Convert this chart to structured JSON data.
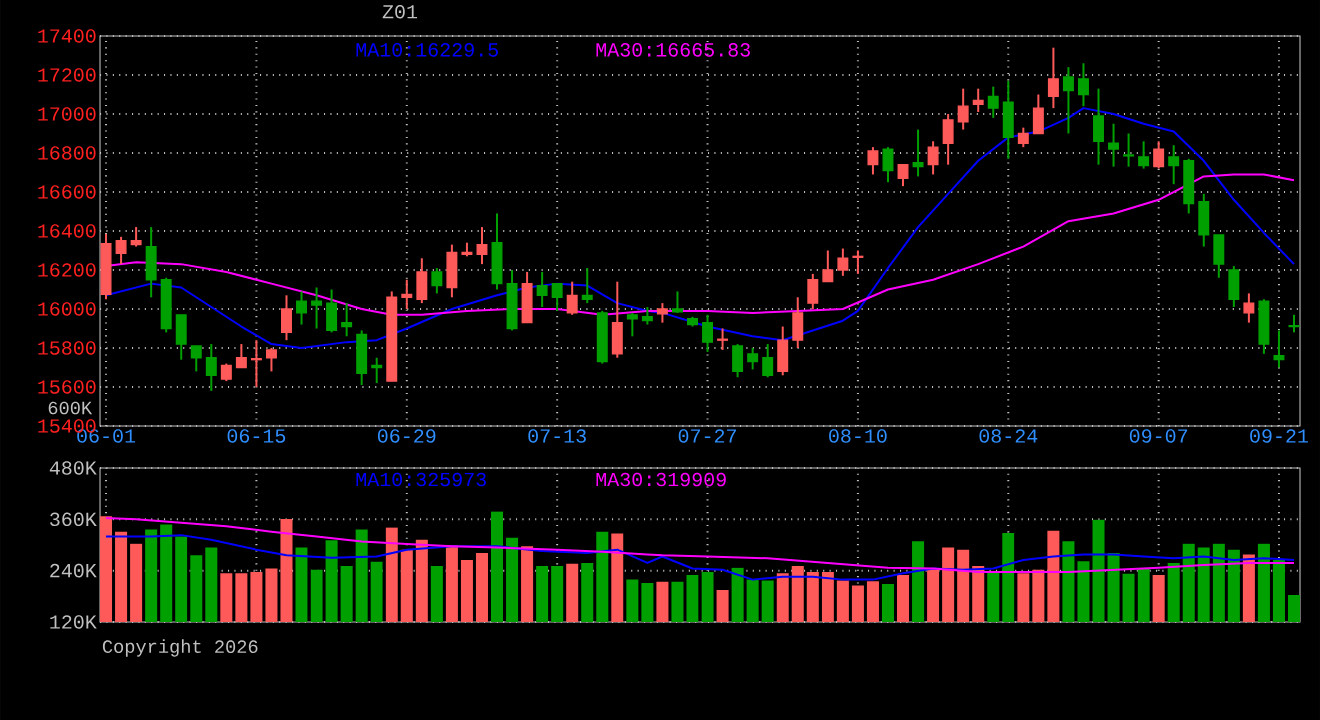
{
  "chart_data": [
    {
      "type": "candlestick",
      "title": "Z01",
      "categories": [
        "06-01",
        null,
        null,
        null,
        null,
        null,
        null,
        null,
        null,
        null,
        "06-15",
        null,
        null,
        null,
        null,
        null,
        null,
        null,
        null,
        null,
        "06-29",
        null,
        null,
        null,
        null,
        null,
        null,
        null,
        null,
        null,
        "07-13",
        null,
        null,
        null,
        null,
        null,
        null,
        null,
        null,
        null,
        "07-27",
        null,
        null,
        null,
        null,
        null,
        null,
        null,
        null,
        null,
        "08-10",
        null,
        null,
        null,
        null,
        null,
        null,
        null,
        null,
        null,
        "08-24",
        null,
        null,
        null,
        null,
        null,
        null,
        null,
        null,
        null,
        "09-07",
        null,
        null,
        null,
        null,
        null,
        null,
        null,
        "09-21",
        null
      ],
      "ohlc": [
        [
          16075,
          16385,
          16050,
          16335
        ],
        [
          16285,
          16370,
          16230,
          16350
        ],
        [
          16330,
          16420,
          16320,
          16350
        ],
        [
          16320,
          16420,
          16060,
          16150
        ],
        [
          16150,
          16160,
          15880,
          15900
        ],
        [
          15970,
          15970,
          15740,
          15820
        ],
        [
          15810,
          15810,
          15680,
          15750
        ],
        [
          15750,
          15820,
          15580,
          15660
        ],
        [
          15640,
          15720,
          15630,
          15710
        ],
        [
          15700,
          15820,
          15700,
          15750
        ],
        [
          15740,
          15840,
          15600,
          15745
        ],
        [
          15750,
          15800,
          15680,
          15790
        ],
        [
          15880,
          16070,
          15840,
          16000
        ],
        [
          16040,
          16090,
          15920,
          15980
        ],
        [
          16040,
          16110,
          15900,
          16020
        ],
        [
          16030,
          16100,
          15880,
          15890
        ],
        [
          15930,
          16030,
          15860,
          15910
        ],
        [
          15870,
          15890,
          15610,
          15670
        ],
        [
          15710,
          15750,
          15620,
          15700
        ],
        [
          15630,
          16090,
          15630,
          16060
        ],
        [
          16060,
          16150,
          16000,
          16075
        ],
        [
          16050,
          16260,
          16030,
          16190
        ],
        [
          16190,
          16210,
          16080,
          16120
        ],
        [
          16110,
          16330,
          16060,
          16290
        ],
        [
          16280,
          16340,
          16270,
          16290
        ],
        [
          16280,
          16420,
          16230,
          16330
        ],
        [
          16340,
          16490,
          16100,
          16130
        ],
        [
          16130,
          16200,
          15890,
          15900
        ],
        [
          15930,
          16190,
          15930,
          16130
        ],
        [
          16120,
          16190,
          16010,
          16070
        ],
        [
          16130,
          16130,
          15990,
          16060
        ],
        [
          15980,
          16140,
          15970,
          16070
        ],
        [
          16070,
          16210,
          16030,
          16050
        ],
        [
          15980,
          15990,
          15720,
          15730
        ],
        [
          15770,
          16140,
          15750,
          15930
        ],
        [
          15970,
          15980,
          15860,
          15950
        ],
        [
          15960,
          16010,
          15920,
          15940
        ],
        [
          15975,
          16030,
          15930,
          16000
        ],
        [
          16000,
          16090,
          15980,
          15985
        ],
        [
          15950,
          15960,
          15910,
          15920
        ],
        [
          15930,
          15970,
          15780,
          15830
        ],
        [
          15840,
          15900,
          15790,
          15845
        ],
        [
          15810,
          15820,
          15650,
          15680
        ],
        [
          15770,
          15800,
          15690,
          15730
        ],
        [
          15750,
          15820,
          15650,
          15660
        ],
        [
          15680,
          15910,
          15660,
          15840
        ],
        [
          15840,
          16060,
          15800,
          15980
        ],
        [
          16030,
          16180,
          16000,
          16150
        ],
        [
          16140,
          16300,
          16140,
          16200
        ],
        [
          16200,
          16310,
          16170,
          16260
        ],
        [
          16265,
          16300,
          16180,
          16270
        ],
        [
          16740,
          16830,
          16690,
          16810
        ],
        [
          16820,
          16830,
          16650,
          16710
        ],
        [
          16670,
          16740,
          16630,
          16740
        ],
        [
          16750,
          16920,
          16680,
          16730
        ],
        [
          16740,
          16860,
          16690,
          16830
        ],
        [
          16850,
          17000,
          16740,
          16970
        ],
        [
          16960,
          17130,
          16920,
          17040
        ],
        [
          17050,
          17130,
          17010,
          17070
        ],
        [
          17090,
          17140,
          16980,
          17030
        ],
        [
          17060,
          17170,
          16770,
          16880
        ],
        [
          16850,
          16930,
          16830,
          16900
        ],
        [
          16900,
          17100,
          16900,
          17030
        ],
        [
          17090,
          17340,
          17030,
          17180
        ],
        [
          17190,
          17240,
          16900,
          17120
        ],
        [
          17180,
          17260,
          17040,
          17100
        ],
        [
          16990,
          17130,
          16740,
          16860
        ],
        [
          16850,
          16950,
          16730,
          16820
        ],
        [
          16790,
          16900,
          16730,
          16785
        ],
        [
          16780,
          16860,
          16720,
          16735
        ],
        [
          16730,
          16860,
          16720,
          16820
        ],
        [
          16780,
          16840,
          16640,
          16735
        ],
        [
          16760,
          16770,
          16490,
          16540
        ],
        [
          16550,
          16590,
          16320,
          16380
        ],
        [
          16380,
          16380,
          16160,
          16230
        ],
        [
          16200,
          16220,
          16010,
          16050
        ],
        [
          15980,
          16080,
          15930,
          16030
        ],
        [
          16040,
          16050,
          15770,
          15820
        ],
        [
          15760,
          15890,
          15700,
          15740
        ],
        [
          15915,
          15970,
          15880,
          15910
        ]
      ],
      "colors": [
        "#ff5a5a",
        "#ff5a5a",
        "#ff5a5a",
        "#00a000",
        "#00a000",
        "#00a000",
        "#00a000",
        "#00a000",
        "#ff5a5a",
        "#ff5a5a",
        "#ff5a5a",
        "#ff5a5a",
        "#ff5a5a",
        "#00a000",
        "#00a000",
        "#00a000",
        "#00a000",
        "#00a000",
        "#00a000",
        "#ff5a5a",
        "#ff5a5a",
        "#ff5a5a",
        "#00a000",
        "#ff5a5a",
        "#ff5a5a",
        "#ff5a5a",
        "#00a000",
        "#00a000",
        "#ff5a5a",
        "#00a000",
        "#00a000",
        "#ff5a5a",
        "#00a000",
        "#00a000",
        "#ff5a5a",
        "#00a000",
        "#00a000",
        "#ff5a5a",
        "#00a000",
        "#00a000",
        "#00a000",
        "#ff5a5a",
        "#00a000",
        "#00a000",
        "#00a000",
        "#ff5a5a",
        "#ff5a5a",
        "#ff5a5a",
        "#ff5a5a",
        "#ff5a5a",
        "#ff5a5a",
        "#ff5a5a",
        "#00a000",
        "#ff5a5a",
        "#00a000",
        "#ff5a5a",
        "#ff5a5a",
        "#ff5a5a",
        "#ff5a5a",
        "#00a000",
        "#00a000",
        "#ff5a5a",
        "#ff5a5a",
        "#ff5a5a",
        "#00a000",
        "#00a000",
        "#00a000",
        "#00a000",
        "#00a000",
        "#00a000",
        "#ff5a5a",
        "#00a000",
        "#00a000",
        "#00a000",
        "#00a000",
        "#00a000",
        "#ff5a5a",
        "#00a000",
        "#00a000",
        "#00a000"
      ],
      "series": [
        {
          "name": "MA10:16229.5",
          "type": "line",
          "color": "#0000ff",
          "values": [
            16070,
            null,
            null,
            16130,
            null,
            16110,
            null,
            16010,
            null,
            15910,
            null,
            15820,
            null,
            15800,
            null,
            null,
            15830,
            null,
            15840,
            null,
            15900,
            null,
            null,
            16000,
            null,
            null,
            16070,
            null,
            16110,
            null,
            16130,
            null,
            16120,
            null,
            16030,
            null,
            15990,
            15980,
            null,
            null,
            15910,
            null,
            null,
            15860,
            null,
            15840,
            null,
            15890,
            null,
            15940,
            15990,
            null,
            16210,
            null,
            16420,
            null,
            16590,
            null,
            16760,
            null,
            16880,
            null,
            16910,
            null,
            16980,
            17030,
            null,
            17000,
            null,
            16950,
            null,
            16910,
            null,
            16760,
            null,
            16560,
            null,
            16390,
            null,
            16230
          ]
        },
        {
          "name": "MA30:16665.83",
          "type": "line",
          "color": "#ff00ff",
          "values": [
            16220,
            null,
            16240,
            null,
            null,
            16230,
            null,
            null,
            16190,
            null,
            null,
            16130,
            null,
            null,
            16070,
            null,
            null,
            16000,
            null,
            15970,
            null,
            15970,
            null,
            null,
            15990,
            null,
            null,
            16000,
            null,
            null,
            16000,
            null,
            null,
            15970,
            null,
            null,
            15990,
            null,
            null,
            null,
            15990,
            null,
            null,
            15980,
            null,
            null,
            15990,
            null,
            null,
            16000,
            null,
            null,
            16100,
            null,
            null,
            16150,
            null,
            null,
            16230,
            null,
            null,
            16320,
            null,
            null,
            16450,
            null,
            null,
            16490,
            null,
            null,
            16560,
            null,
            null,
            16680,
            null,
            16690,
            null,
            16690,
            null,
            16660
          ]
        }
      ],
      "ylim": [
        15400,
        17400
      ],
      "yticks": [
        15400,
        15600,
        15800,
        16000,
        16200,
        16400,
        16600,
        16800,
        17000,
        17200,
        17400
      ],
      "grid": true,
      "legend": "top",
      "annotations": [
        "600K"
      ]
    },
    {
      "type": "bar",
      "categories": [
        null,
        null,
        null,
        null,
        null,
        null,
        null,
        null,
        null,
        null,
        null,
        null,
        null,
        null,
        null,
        null,
        null,
        null,
        null,
        null,
        null,
        null,
        null,
        null,
        null,
        null,
        null,
        null,
        null,
        null,
        null,
        null,
        null,
        null,
        null,
        null,
        null,
        null,
        null,
        null,
        null,
        null,
        null,
        null,
        null,
        null,
        null,
        null,
        null,
        null,
        null,
        null,
        null,
        null,
        null,
        null,
        null,
        null,
        null,
        null,
        null,
        null,
        null,
        null,
        null,
        null,
        null,
        null,
        null,
        null,
        null,
        null,
        null,
        null,
        null,
        null,
        null,
        null,
        null,
        null
      ],
      "series": [
        {
          "type": "bar",
          "values": [
            367000,
            331000,
            303000,
            336000,
            348000,
            320000,
            276000,
            294000,
            234000,
            234000,
            237000,
            245000,
            361000,
            294000,
            242000,
            311000,
            251000,
            336000,
            261000,
            341000,
            289000,
            312000,
            251000,
            300000,
            265000,
            281000,
            378000,
            317000,
            297000,
            251000,
            251000,
            256000,
            258000,
            331000,
            327000,
            219000,
            211000,
            214000,
            214000,
            230000,
            237000,
            195000,
            247000,
            219000,
            217000,
            234000,
            251000,
            237000,
            237000,
            217000,
            205000,
            215000,
            209000,
            230000,
            309000,
            245000,
            294000,
            289000,
            251000,
            237000,
            328000,
            234000,
            242000,
            333000,
            309000,
            262000,
            359000,
            281000,
            233000,
            245000,
            230000,
            258000,
            303000,
            294000,
            303000,
            289000,
            278000,
            303000,
            265000,
            183000
          ],
          "colors": [
            "#ff5a5a",
            "#ff5a5a",
            "#ff5a5a",
            "#00a000",
            "#00a000",
            "#00a000",
            "#00a000",
            "#00a000",
            "#ff5a5a",
            "#ff5a5a",
            "#ff5a5a",
            "#ff5a5a",
            "#ff5a5a",
            "#00a000",
            "#00a000",
            "#00a000",
            "#00a000",
            "#00a000",
            "#00a000",
            "#ff5a5a",
            "#ff5a5a",
            "#ff5a5a",
            "#00a000",
            "#ff5a5a",
            "#ff5a5a",
            "#ff5a5a",
            "#00a000",
            "#00a000",
            "#ff5a5a",
            "#00a000",
            "#00a000",
            "#ff5a5a",
            "#00a000",
            "#00a000",
            "#ff5a5a",
            "#00a000",
            "#00a000",
            "#ff5a5a",
            "#00a000",
            "#00a000",
            "#00a000",
            "#ff5a5a",
            "#00a000",
            "#00a000",
            "#00a000",
            "#ff5a5a",
            "#ff5a5a",
            "#ff5a5a",
            "#ff5a5a",
            "#ff5a5a",
            "#ff5a5a",
            "#ff5a5a",
            "#00a000",
            "#ff5a5a",
            "#00a000",
            "#ff5a5a",
            "#ff5a5a",
            "#ff5a5a",
            "#ff5a5a",
            "#00a000",
            "#00a000",
            "#ff5a5a",
            "#ff5a5a",
            "#ff5a5a",
            "#00a000",
            "#00a000",
            "#00a000",
            "#00a000",
            "#00a000",
            "#00a000",
            "#ff5a5a",
            "#00a000",
            "#00a000",
            "#00a000",
            "#00a000",
            "#00a000",
            "#ff5a5a",
            "#00a000",
            "#00a000",
            "#00a000"
          ]
        },
        {
          "name": "MA10:325973",
          "type": "line",
          "color": "#0000ff",
          "values": [
            320000,
            null,
            null,
            320000,
            null,
            323000,
            null,
            312000,
            null,
            null,
            289000,
            null,
            276000,
            null,
            null,
            270000,
            null,
            null,
            273000,
            null,
            289000,
            null,
            null,
            297000,
            null,
            null,
            297000,
            null,
            null,
            286000,
            null,
            null,
            281000,
            null,
            289000,
            null,
            258000,
            273000,
            null,
            245000,
            null,
            242000,
            null,
            219000,
            null,
            226000,
            null,
            226000,
            null,
            219000,
            null,
            219000,
            null,
            234000,
            null,
            245000,
            null,
            242000,
            null,
            245000,
            null,
            265000,
            null,
            273000,
            null,
            278000,
            null,
            278000,
            null,
            273000,
            null,
            269000,
            null,
            273000,
            null,
            265000,
            null,
            269000,
            null,
            265000
          ]
        },
        {
          "name": "MA30:319909",
          "type": "line",
          "color": "#ff00ff",
          "values": [
            363000,
            null,
            360000,
            null,
            null,
            352000,
            null,
            null,
            344000,
            null,
            null,
            331000,
            null,
            null,
            320000,
            null,
            null,
            308000,
            null,
            null,
            302000,
            null,
            null,
            297000,
            null,
            null,
            294000,
            null,
            null,
            null,
            289000,
            null,
            null,
            284000,
            null,
            null,
            278000,
            276000,
            null,
            null,
            273000,
            null,
            null,
            null,
            269000,
            null,
            null,
            null,
            258000,
            null,
            null,
            null,
            247000,
            null,
            null,
            245000,
            null,
            null,
            237000,
            null,
            null,
            237000,
            null,
            null,
            237000,
            null,
            null,
            242000,
            null,
            null,
            247000,
            null,
            null,
            253000,
            null,
            null,
            258000,
            null,
            null,
            258000
          ]
        }
      ],
      "ylim": [
        120000,
        480000
      ],
      "yticks": [
        {
          "value": 120000,
          "label": "120K"
        },
        {
          "value": 240000,
          "label": "240K"
        },
        {
          "value": 360000,
          "label": "360K"
        },
        {
          "value": 480000,
          "label": "480K"
        }
      ],
      "grid": true,
      "legend": "top",
      "tick_labels": "y",
      "annotations": [
        "Copyright 2026"
      ]
    }
  ]
}
